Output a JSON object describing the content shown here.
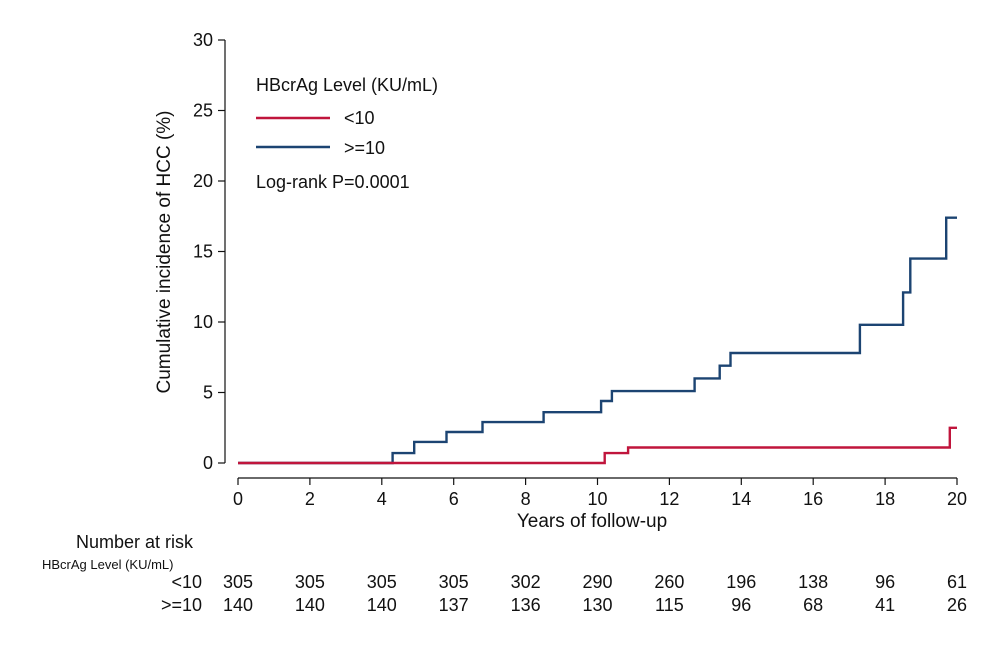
{
  "chart_data": {
    "type": "line",
    "subtype": "kaplan-meier-step",
    "title": "",
    "xlabel": "Years of follow-up",
    "ylabel": "Cumulative incidence of HCC (%)",
    "xlim": [
      0,
      20
    ],
    "ylim": [
      0,
      30
    ],
    "xticks": [
      "0",
      "2",
      "4",
      "6",
      "8",
      "10",
      "12",
      "14",
      "16",
      "18",
      "20"
    ],
    "yticks": [
      "0",
      "5",
      "10",
      "15",
      "20",
      "25",
      "30"
    ],
    "grid": false,
    "legend": {
      "title": "HBcrAg Level (KU/mL)",
      "position": "top-left",
      "annotation": "Log-rank P=0.0001"
    },
    "series": [
      {
        "name": "<10",
        "color": "#c0153c",
        "x": [
          0,
          10.2,
          10.2,
          10.85,
          10.85,
          19.8,
          19.8,
          20
        ],
        "y": [
          0,
          0,
          0.7,
          0.7,
          1.1,
          1.1,
          2.5,
          2.5
        ]
      },
      {
        "name": ">=10",
        "color": "#1c4472",
        "x": [
          0,
          4.3,
          4.3,
          4.9,
          4.9,
          5.8,
          5.8,
          6.8,
          6.8,
          8.5,
          8.5,
          10.1,
          10.1,
          10.4,
          10.4,
          12.7,
          12.7,
          13.4,
          13.4,
          13.7,
          13.7,
          17.3,
          17.3,
          18.5,
          18.5,
          18.7,
          18.7,
          19.7,
          19.7,
          20
        ],
        "y": [
          0,
          0,
          0.7,
          0.7,
          1.5,
          1.5,
          2.2,
          2.2,
          2.9,
          2.9,
          3.6,
          3.6,
          4.4,
          4.4,
          5.1,
          5.1,
          6.0,
          6.0,
          6.9,
          6.9,
          7.8,
          7.8,
          9.8,
          9.8,
          12.1,
          12.1,
          14.5,
          14.5,
          17.4,
          17.4
        ]
      }
    ]
  },
  "risk_table": {
    "title": "Number at risk",
    "subtitle": "HBcrAg Level (KU/mL)",
    "time_points": [
      0,
      2,
      4,
      6,
      8,
      10,
      12,
      14,
      16,
      18,
      20
    ],
    "rows": [
      {
        "label": "<10",
        "values": [
          "305",
          "305",
          "305",
          "305",
          "302",
          "290",
          "260",
          "196",
          "138",
          "96",
          "61"
        ]
      },
      {
        "label": ">=10",
        "values": [
          "140",
          "140",
          "140",
          "137",
          "136",
          "130",
          "115",
          "96",
          "68",
          "41",
          "26"
        ]
      }
    ]
  }
}
